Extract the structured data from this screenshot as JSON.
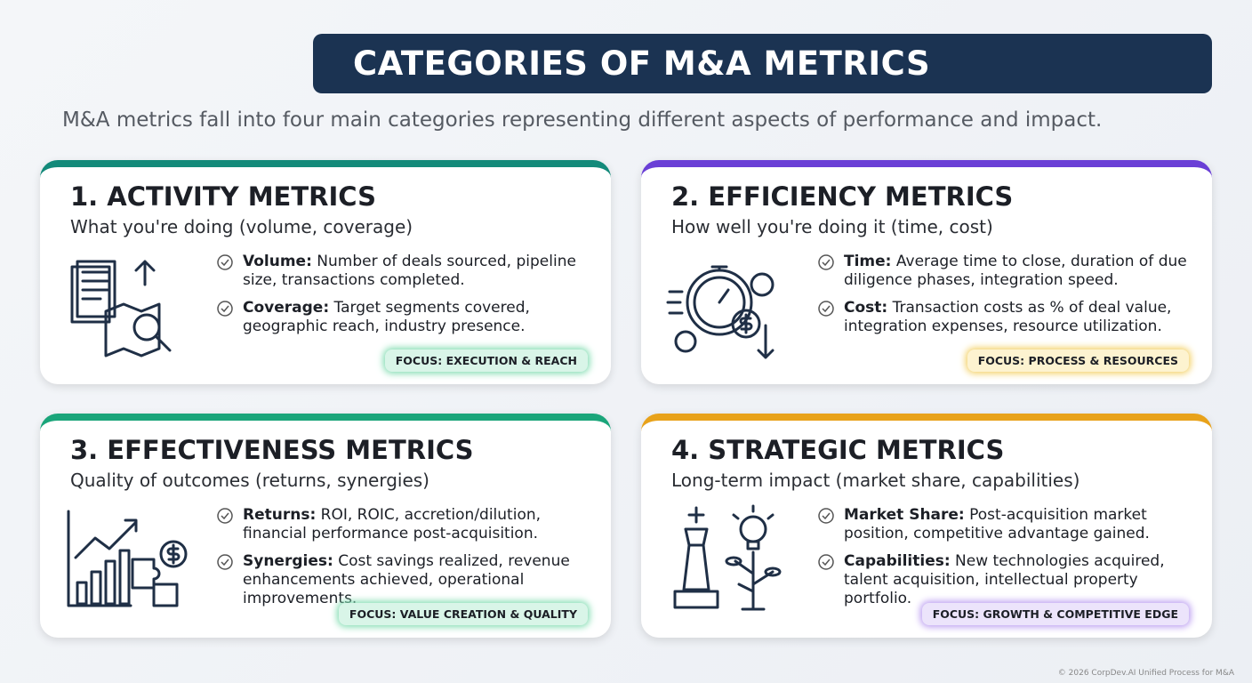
{
  "header": {
    "title": "CATEGORIES OF M&A METRICS",
    "subtitle": "M&A metrics fall into four main categories representing different aspects of performance and impact."
  },
  "cards": [
    {
      "title": "1. ACTIVITY METRICS",
      "subtitle": "What you're doing (volume, coverage)",
      "items": [
        {
          "label": "Volume:",
          "text": "Number of deals sourced, pipeline size, transactions completed."
        },
        {
          "label": "Coverage:",
          "text": "Target segments covered, geographic reach, industry presence."
        }
      ],
      "focus": "FOCUS: EXECUTION & REACH"
    },
    {
      "title": "2. EFFICIENCY METRICS",
      "subtitle": "How well you're doing it (time, cost)",
      "items": [
        {
          "label": "Time:",
          "text": "Average time to close, duration of due diligence phases, integration speed."
        },
        {
          "label": "Cost:",
          "text": "Transaction costs as % of deal value, integration expenses, resource utilization."
        }
      ],
      "focus": "FOCUS: PROCESS & RESOURCES"
    },
    {
      "title": "3. EFFECTIVENESS METRICS",
      "subtitle": "Quality of outcomes (returns, synergies)",
      "items": [
        {
          "label": "Returns:",
          "text": "ROI, ROIC, accretion/dilution, financial performance post-acquisition."
        },
        {
          "label": "Synergies:",
          "text": "Cost savings realized, revenue enhancements achieved, operational improvements."
        }
      ],
      "focus": "FOCUS: VALUE CREATION & QUALITY"
    },
    {
      "title": "4. STRATEGIC METRICS",
      "subtitle": "Long-term impact (market share, capabilities)",
      "items": [
        {
          "label": "Market Share:",
          "text": "Post-acquisition market position, competitive advantage gained."
        },
        {
          "label": "Capabilities:",
          "text": "New technologies acquired, talent acquisition, intellectual property portfolio."
        }
      ],
      "focus": "FOCUS: GROWTH & COMPETITIVE EDGE"
    }
  ],
  "footer": "© 2026 CorpDev.AI Unified Process for M&A"
}
